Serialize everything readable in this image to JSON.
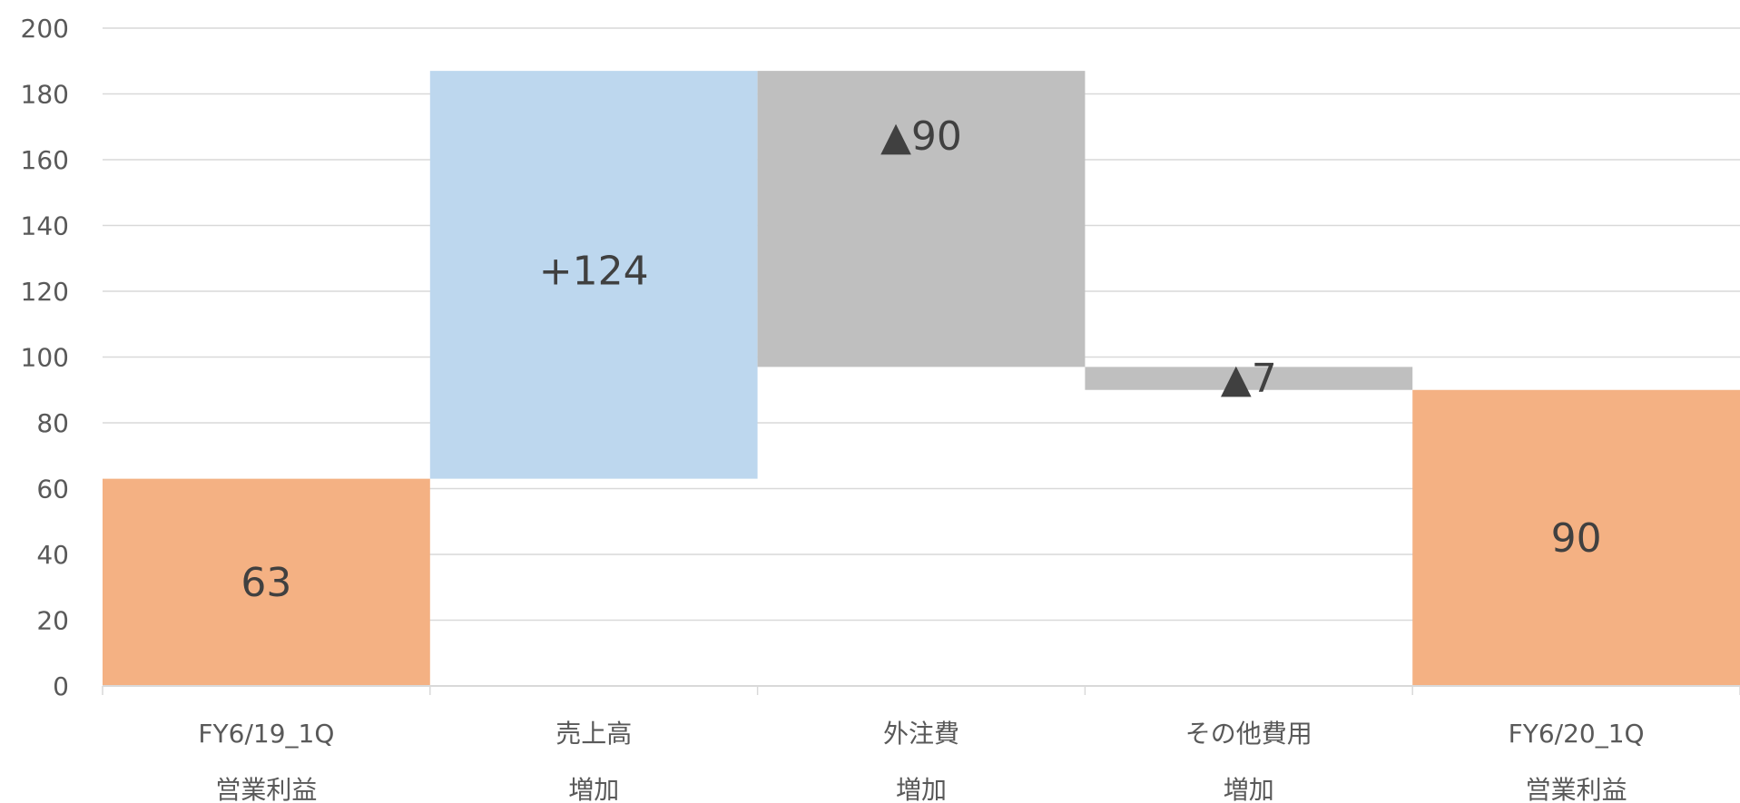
{
  "chart_data": {
    "type": "bar",
    "subtype": "waterfall",
    "categories": [
      [
        "FY6/19_1Q",
        "営業利益"
      ],
      [
        "売上高",
        "増加"
      ],
      [
        "外注費",
        "増加"
      ],
      [
        "その他費用",
        "増加"
      ],
      [
        "FY6/20_1Q",
        "営業利益"
      ]
    ],
    "bars": [
      {
        "base": 0,
        "top": 63,
        "kind": "total",
        "label": "63"
      },
      {
        "base": 63,
        "top": 187,
        "kind": "increase",
        "label": "+124"
      },
      {
        "base": 97,
        "top": 187,
        "kind": "decrease",
        "label": "▲90"
      },
      {
        "base": 90,
        "top": 97,
        "kind": "decrease",
        "label": "▲7"
      },
      {
        "base": 0,
        "top": 90,
        "kind": "total",
        "label": "90"
      }
    ],
    "ylim": [
      0,
      200
    ],
    "yticks": [
      "0",
      "20",
      "40",
      "60",
      "80",
      "100",
      "120",
      "140",
      "160",
      "180",
      "200"
    ],
    "grid": true,
    "colors": {
      "total": "#F4B183",
      "increase": "#BDD7EE",
      "decrease": "#BFBFBF",
      "grid": "#D9D9D9",
      "text": "#595959"
    }
  }
}
